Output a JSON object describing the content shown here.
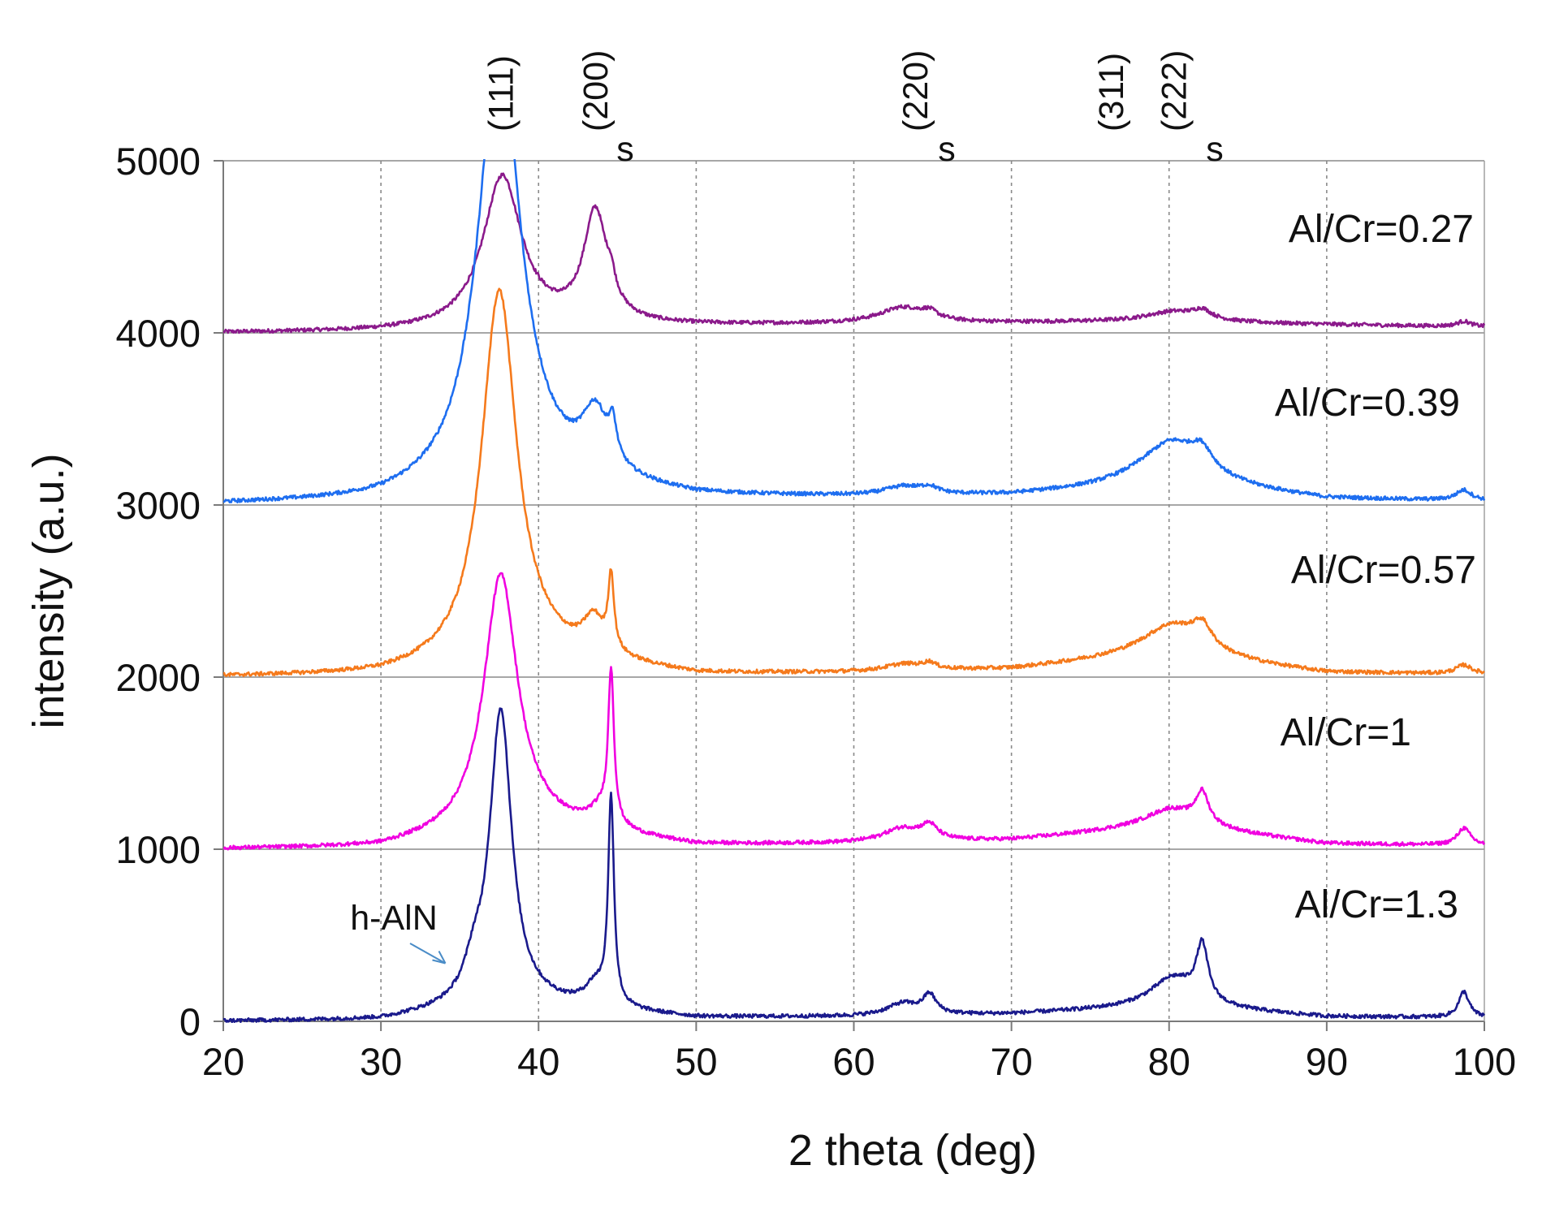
{
  "chart_data": {
    "type": "line",
    "title": "",
    "xlabel": "2 theta (deg)",
    "ylabel": "intensity (a.u.)",
    "xlim": [
      20,
      100
    ],
    "ylim": [
      0,
      5000
    ],
    "x_ticks": [
      "20",
      "30",
      "40",
      "50",
      "60",
      "70",
      "80",
      "90",
      "100"
    ],
    "y_ticks": [
      "0",
      "1000",
      "2000",
      "3000",
      "4000",
      "5000"
    ],
    "grid": {
      "vertical": "dotted",
      "horizontal": "solid"
    },
    "peak_labels": [
      {
        "text": "(111)",
        "x": 37.6
      },
      {
        "text": "(200)",
        "x": 43.6
      },
      {
        "text": "(220)",
        "x": 63.9
      },
      {
        "text": "(311)",
        "x": 76.3
      },
      {
        "text": "(222)",
        "x": 80.3
      }
    ],
    "substrate_markers": [
      {
        "text": "s",
        "x": 45.5
      },
      {
        "text": "s",
        "x": 65.9
      },
      {
        "text": "s",
        "x": 82.9
      }
    ],
    "annotation": {
      "text": "h-AlN",
      "x_arrow": 34.5,
      "y_arrow": 290
    },
    "series": [
      {
        "name": "Al/Cr=0.27",
        "color": "#8B1A8B",
        "baseline": 4000,
        "background": [
          [
            20,
            0
          ],
          [
            30,
            5
          ],
          [
            35,
            15
          ],
          [
            40,
            30
          ],
          [
            60,
            50
          ],
          [
            75,
            60
          ],
          [
            80,
            60
          ],
          [
            95,
            40
          ],
          [
            100,
            35
          ]
        ],
        "peaks": [
          {
            "center": 37.7,
            "height": 880,
            "width": 1.5
          },
          {
            "center": 43.6,
            "height": 640,
            "width": 0.9
          },
          {
            "center": 44.6,
            "height": 100,
            "width": 0.3
          },
          {
            "center": 63.1,
            "height": 90,
            "width": 1.8
          },
          {
            "center": 64.8,
            "height": 40,
            "width": 0.6
          },
          {
            "center": 80.3,
            "height": 60,
            "width": 2.2
          },
          {
            "center": 82.1,
            "height": 50,
            "width": 0.7
          },
          {
            "center": 98.7,
            "height": 30,
            "width": 0.5
          }
        ]
      },
      {
        "name": "Al/Cr=0.39",
        "color": "#1E6EF0",
        "baseline": 3000,
        "background": [
          [
            20,
            0
          ],
          [
            30,
            10
          ],
          [
            35,
            60
          ],
          [
            40,
            120
          ],
          [
            50,
            40
          ],
          [
            60,
            40
          ],
          [
            70,
            50
          ],
          [
            75,
            80
          ],
          [
            80,
            120
          ],
          [
            90,
            30
          ],
          [
            100,
            20
          ]
        ],
        "peaks": [
          {
            "center": 37.5,
            "height": 2600,
            "width": 1.6
          },
          {
            "center": 43.6,
            "height": 340,
            "width": 1.0
          },
          {
            "center": 44.7,
            "height": 200,
            "width": 0.3
          },
          {
            "center": 63.2,
            "height": 50,
            "width": 1.5
          },
          {
            "center": 64.8,
            "height": 35,
            "width": 0.6
          },
          {
            "center": 80.2,
            "height": 240,
            "width": 2.6
          },
          {
            "center": 82.1,
            "height": 110,
            "width": 0.8
          },
          {
            "center": 98.7,
            "height": 60,
            "width": 0.6
          }
        ]
      },
      {
        "name": "Al/Cr=0.57",
        "color": "#F57A1C",
        "baseline": 2000,
        "background": [
          [
            20,
            0
          ],
          [
            30,
            5
          ],
          [
            35,
            50
          ],
          [
            40,
            100
          ],
          [
            50,
            10
          ],
          [
            60,
            20
          ],
          [
            70,
            40
          ],
          [
            75,
            80
          ],
          [
            80,
            110
          ],
          [
            90,
            20
          ],
          [
            100,
            15
          ]
        ],
        "peaks": [
          {
            "center": 37.5,
            "height": 2170,
            "width": 1.35
          },
          {
            "center": 43.5,
            "height": 200,
            "width": 0.8
          },
          {
            "center": 44.6,
            "height": 430,
            "width": 0.22
          },
          {
            "center": 63.2,
            "height": 40,
            "width": 1.5
          },
          {
            "center": 64.8,
            "height": 35,
            "width": 0.5
          },
          {
            "center": 80.3,
            "height": 190,
            "width": 2.6
          },
          {
            "center": 82.1,
            "height": 120,
            "width": 0.7
          },
          {
            "center": 98.7,
            "height": 50,
            "width": 0.6
          }
        ]
      },
      {
        "name": "Al/Cr=1",
        "color": "#F000E0",
        "baseline": 1000,
        "background": [
          [
            20,
            0
          ],
          [
            30,
            5
          ],
          [
            35,
            70
          ],
          [
            40,
            120
          ],
          [
            50,
            20
          ],
          [
            60,
            30
          ],
          [
            70,
            50
          ],
          [
            75,
            90
          ],
          [
            80,
            130
          ],
          [
            90,
            30
          ],
          [
            100,
            20
          ]
        ],
        "peaks": [
          {
            "center": 37.6,
            "height": 1500,
            "width": 1.3
          },
          {
            "center": 43.9,
            "height": 100,
            "width": 0.9
          },
          {
            "center": 44.6,
            "height": 880,
            "width": 0.22
          },
          {
            "center": 63.1,
            "height": 80,
            "width": 1.5
          },
          {
            "center": 64.8,
            "height": 80,
            "width": 0.6
          },
          {
            "center": 80.2,
            "height": 100,
            "width": 2.2
          },
          {
            "center": 82.1,
            "height": 180,
            "width": 0.5
          },
          {
            "center": 98.7,
            "height": 100,
            "width": 0.5
          }
        ]
      },
      {
        "name": "Al/Cr=1.3",
        "color": "#1A1A8C",
        "baseline": 0,
        "background": [
          [
            20,
            0
          ],
          [
            30,
            5
          ],
          [
            35,
            60
          ],
          [
            40,
            90
          ],
          [
            50,
            20
          ],
          [
            60,
            25
          ],
          [
            70,
            40
          ],
          [
            75,
            60
          ],
          [
            80,
            80
          ],
          [
            90,
            25
          ],
          [
            100,
            20
          ]
        ],
        "peaks": [
          {
            "center": 35.9,
            "height": 160,
            "width": 0.7
          },
          {
            "center": 37.6,
            "height": 1720,
            "width": 0.85
          },
          {
            "center": 43.6,
            "height": 120,
            "width": 0.8
          },
          {
            "center": 44.6,
            "height": 1200,
            "width": 0.22
          },
          {
            "center": 63.1,
            "height": 70,
            "width": 1.2
          },
          {
            "center": 64.8,
            "height": 110,
            "width": 0.5
          },
          {
            "center": 80.3,
            "height": 170,
            "width": 1.8
          },
          {
            "center": 82.1,
            "height": 320,
            "width": 0.45
          },
          {
            "center": 98.7,
            "height": 150,
            "width": 0.4
          }
        ]
      }
    ]
  }
}
